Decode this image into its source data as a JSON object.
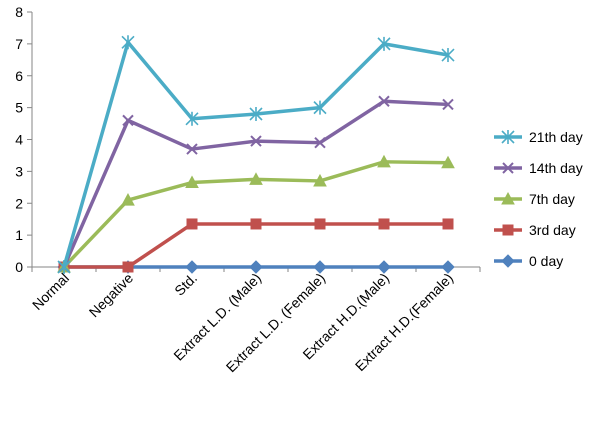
{
  "chart_data": {
    "type": "line",
    "categories": [
      "Normal",
      "Negative",
      "Std.",
      "Extract L.D. (Male)",
      "Extract L.D. (Female)",
      "Extract H.D.(Male)",
      "Extract H.D.(Female)"
    ],
    "ylim": [
      0,
      8
    ],
    "yticks": [
      0,
      1,
      2,
      3,
      4,
      5,
      6,
      7,
      8
    ],
    "grid": false,
    "legend_position": "right",
    "series": [
      {
        "name": "21th day",
        "color": "#4bacc6",
        "marker": "star",
        "values": [
          0,
          7.05,
          4.65,
          4.8,
          5.0,
          7.0,
          6.65
        ]
      },
      {
        "name": "14th day",
        "color": "#8064a2",
        "marker": "x",
        "values": [
          0,
          4.6,
          3.7,
          3.95,
          3.9,
          5.2,
          5.1
        ]
      },
      {
        "name": "7th day",
        "color": "#9bbb59",
        "marker": "triangle",
        "values": [
          0,
          2.1,
          2.65,
          2.75,
          2.7,
          3.3,
          3.27
        ]
      },
      {
        "name": "3rd day",
        "color": "#c0504d",
        "marker": "square",
        "values": [
          0,
          0,
          1.35,
          1.35,
          1.35,
          1.35,
          1.35
        ]
      },
      {
        "name": "0 day",
        "color": "#4f81bd",
        "marker": "diamond",
        "values": [
          0,
          0,
          0,
          0,
          0,
          0,
          0
        ]
      }
    ]
  }
}
